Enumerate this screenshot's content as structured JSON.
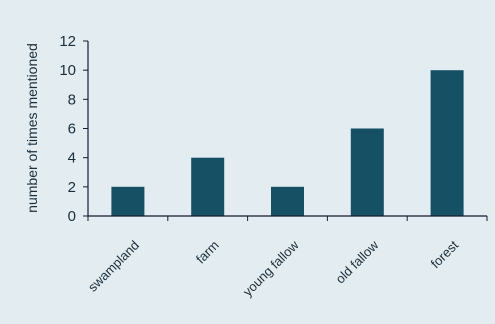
{
  "chart_data": {
    "type": "bar",
    "title": "",
    "xlabel": "",
    "ylabel": "number of times mentioned",
    "categories": [
      "swampland",
      "farm",
      "young fallow",
      "old fallow",
      "forest"
    ],
    "values": [
      2,
      4,
      2,
      6,
      10
    ],
    "ylim": [
      0,
      12
    ],
    "yticks": [
      0,
      2,
      4,
      6,
      8,
      10,
      12
    ],
    "grid": false,
    "legend": "none",
    "bar_color": "#165064",
    "background_color": "#e2ecf1"
  }
}
